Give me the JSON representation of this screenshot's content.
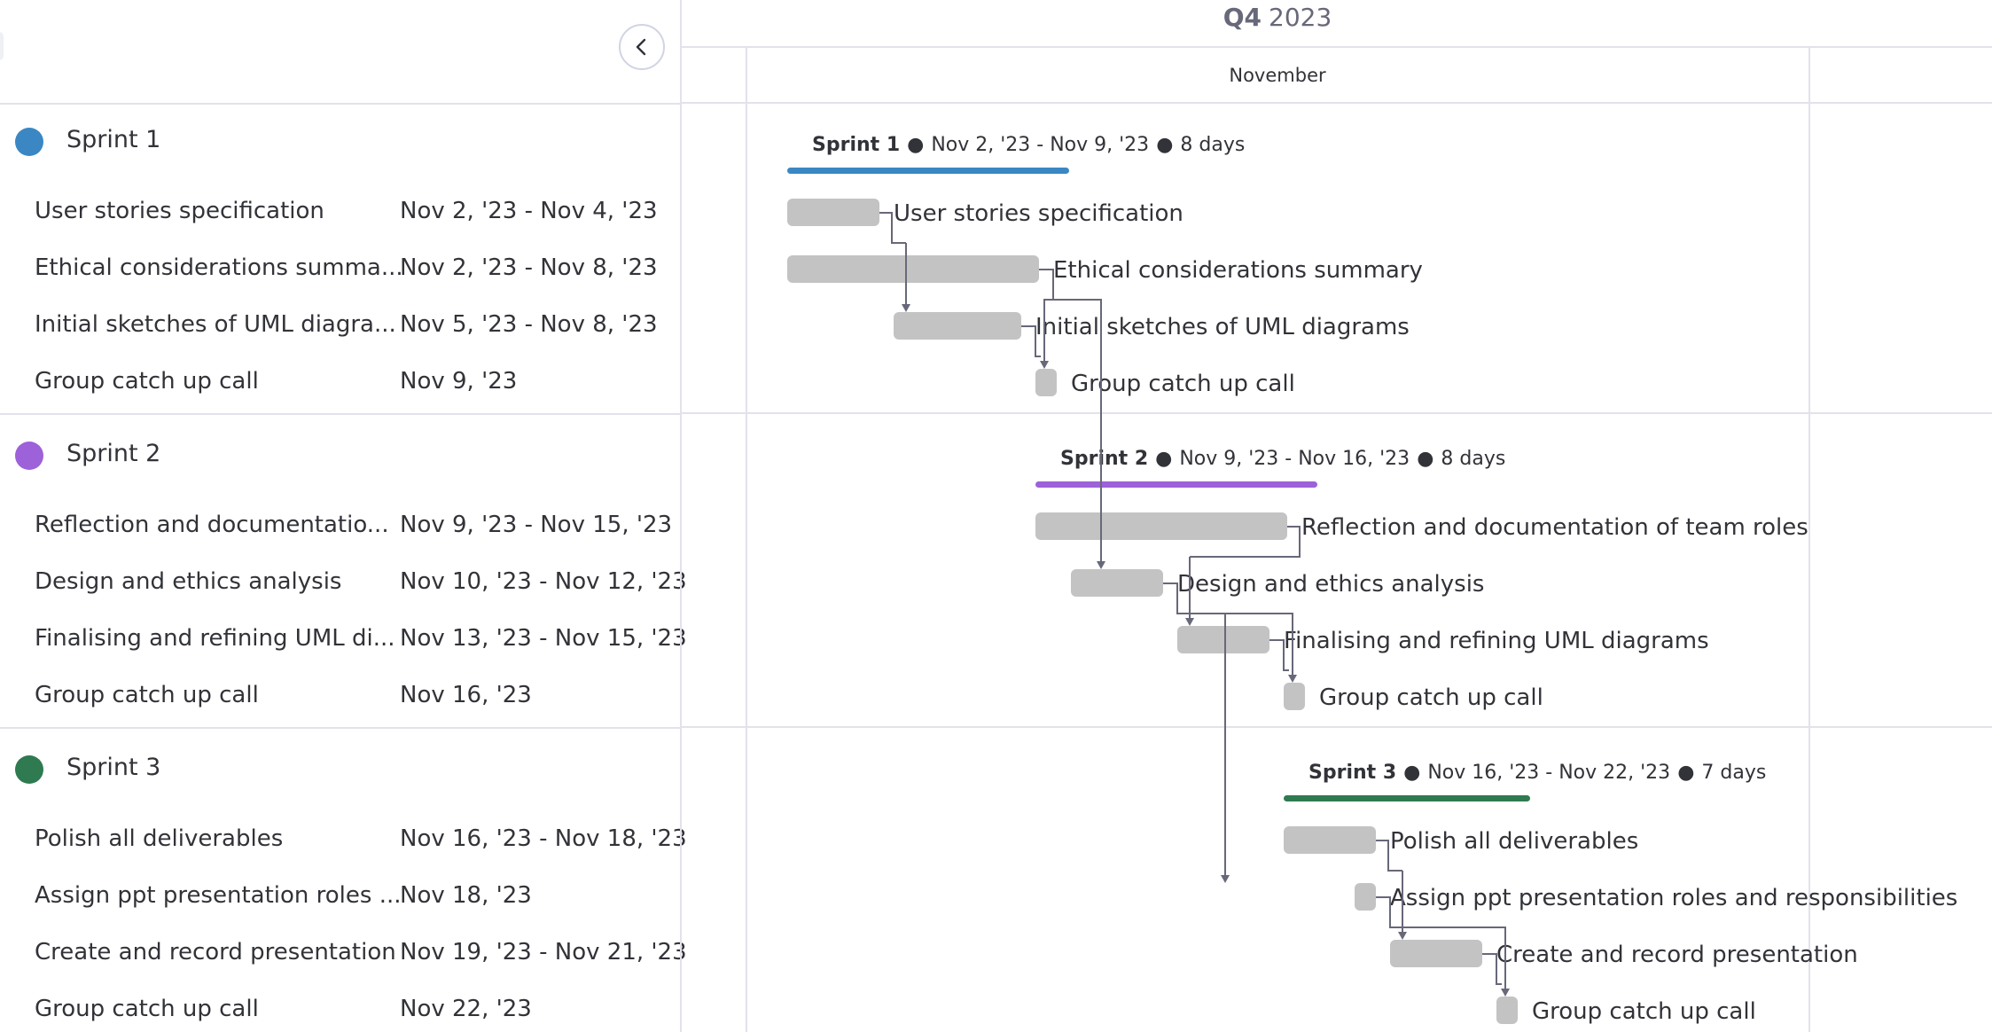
{
  "timeline": {
    "quarter_label": "Q4",
    "year_label": "2023",
    "month_label": "November"
  },
  "sprints": [
    {
      "name": "Sprint 1",
      "color": "#3a87c4",
      "range": "Nov 2, '23 - Nov 9, '23",
      "duration": "8 days",
      "tasks": [
        {
          "name": "User stories specification",
          "list_name": "User stories specification",
          "dates": "Nov 2, '23 - Nov 4, '23"
        },
        {
          "name": "Ethical considerations summary",
          "list_name": "Ethical considerations summa...",
          "dates": "Nov 2, '23 - Nov 8, '23"
        },
        {
          "name": "Initial sketches of UML diagrams",
          "list_name": "Initial sketches of UML diagra...",
          "dates": "Nov 5, '23 - Nov 8, '23"
        },
        {
          "name": "Group catch up call",
          "list_name": "Group catch up call",
          "dates": "Nov 9, '23"
        }
      ]
    },
    {
      "name": "Sprint 2",
      "color": "#9d61d9",
      "range": "Nov 9, '23 - Nov 16, '23",
      "duration": "8 days",
      "tasks": [
        {
          "name": "Reflection and documentation of team roles",
          "list_name": "Reflection and documentatio...",
          "dates": "Nov 9, '23 - Nov 15, '23"
        },
        {
          "name": "Design and ethics analysis",
          "list_name": "Design and ethics analysis",
          "dates": "Nov 10, '23 - Nov 12, '23"
        },
        {
          "name": "Finalising and refining UML diagrams",
          "list_name": "Finalising and refining UML di...",
          "dates": "Nov 13, '23 - Nov 15, '23"
        },
        {
          "name": "Group catch up call",
          "list_name": "Group catch up call",
          "dates": "Nov 16, '23"
        }
      ]
    },
    {
      "name": "Sprint 3",
      "color": "#2f7a50",
      "range": "Nov 16, '23 - Nov 22, '23",
      "duration": "7 days",
      "tasks": [
        {
          "name": "Polish all deliverables",
          "list_name": "Polish all deliverables",
          "dates": "Nov 16, '23 - Nov 18, '23"
        },
        {
          "name": "Assign ppt presentation roles and responsibilities",
          "list_name": "Assign ppt presentation roles ...",
          "dates": "Nov 18, '23"
        },
        {
          "name": "Create and record presentation",
          "list_name": "Create and record presentation",
          "dates": "Nov 19, '23 - Nov 21, '23"
        },
        {
          "name": "Group catch up call",
          "list_name": "Group catch up call",
          "dates": "Nov 22, '23"
        }
      ]
    }
  ],
  "colors": {
    "task_bar": "#c3c3c3",
    "grid": "#e2e2ec",
    "connector": "#676879"
  },
  "icons": {
    "collapse": "chevron-left-icon"
  }
}
